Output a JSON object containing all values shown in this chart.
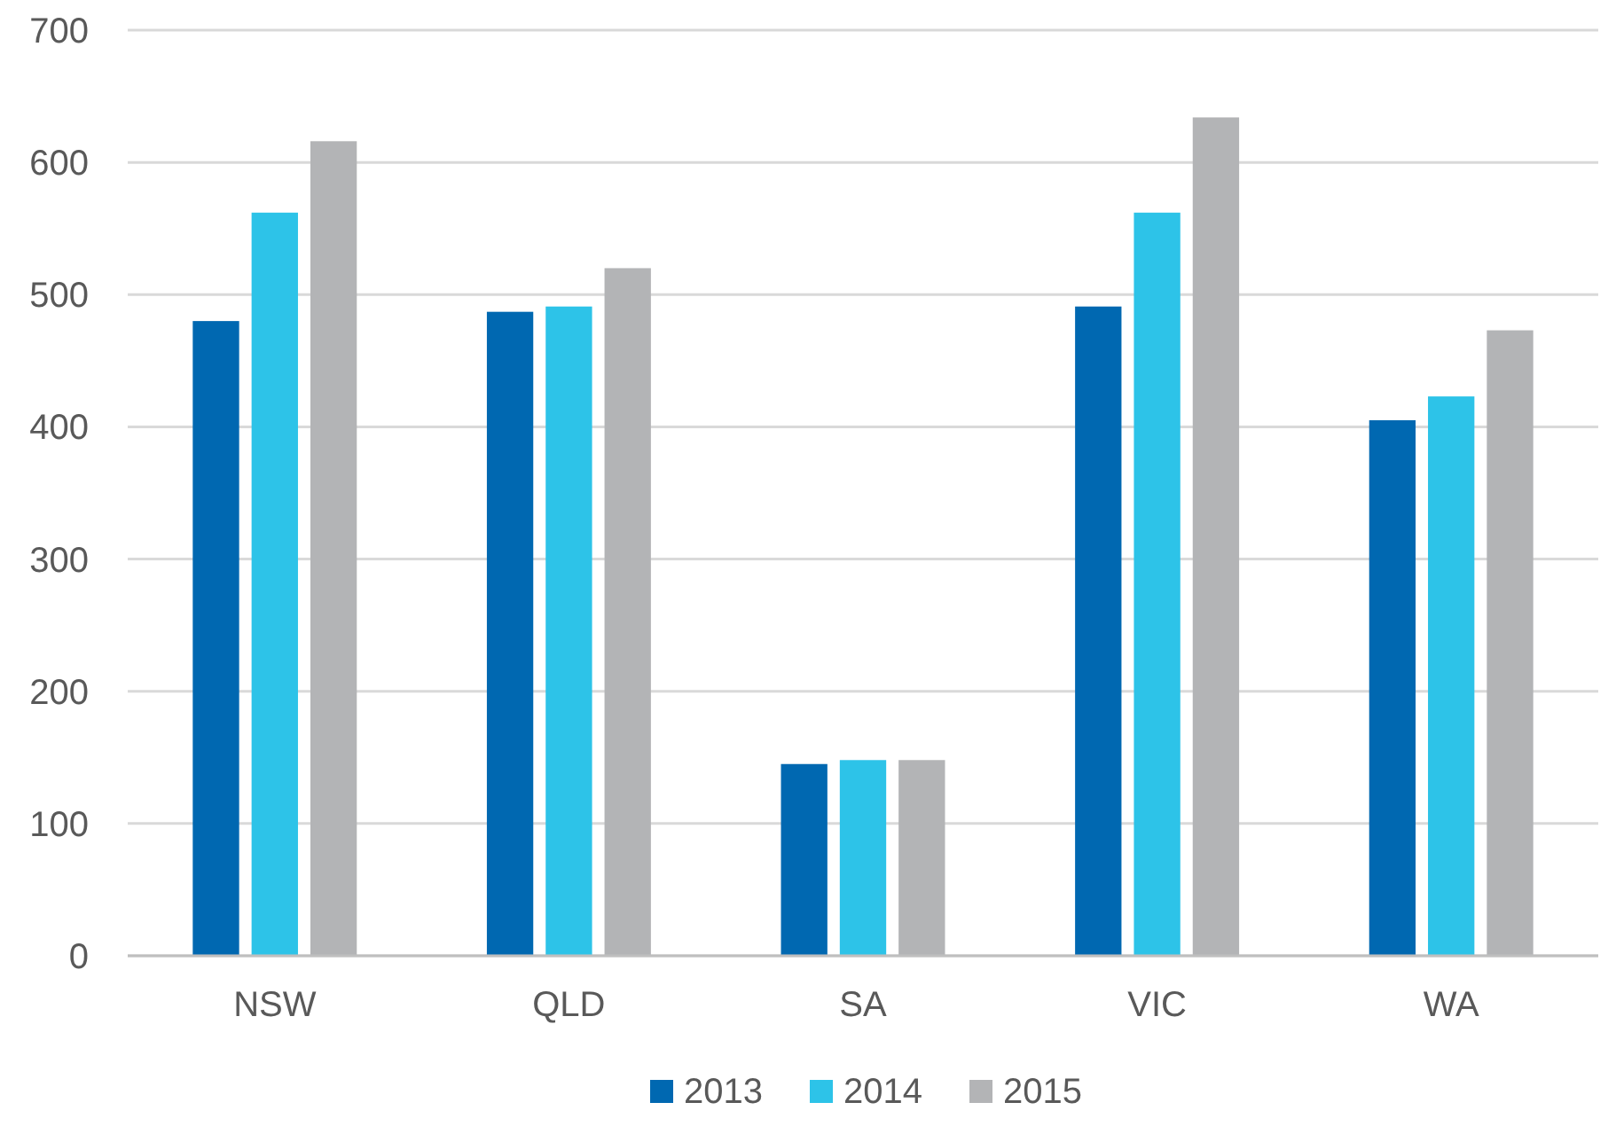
{
  "chart_data": {
    "type": "bar",
    "categories": [
      "NSW",
      "QLD",
      "SA",
      "VIC",
      "WA"
    ],
    "series": [
      {
        "name": "2013",
        "color": "#0068b1",
        "values": [
          480,
          487,
          145,
          491,
          405
        ]
      },
      {
        "name": "2014",
        "color": "#2dc3e8",
        "values": [
          562,
          491,
          148,
          562,
          423
        ]
      },
      {
        "name": "2015",
        "color": "#b3b4b6",
        "values": [
          616,
          520,
          148,
          634,
          473
        ]
      }
    ],
    "ylim": [
      0,
      700
    ],
    "yticks": [
      0,
      100,
      200,
      300,
      400,
      500,
      600,
      700
    ],
    "grid": "y",
    "legend": "bottom"
  }
}
